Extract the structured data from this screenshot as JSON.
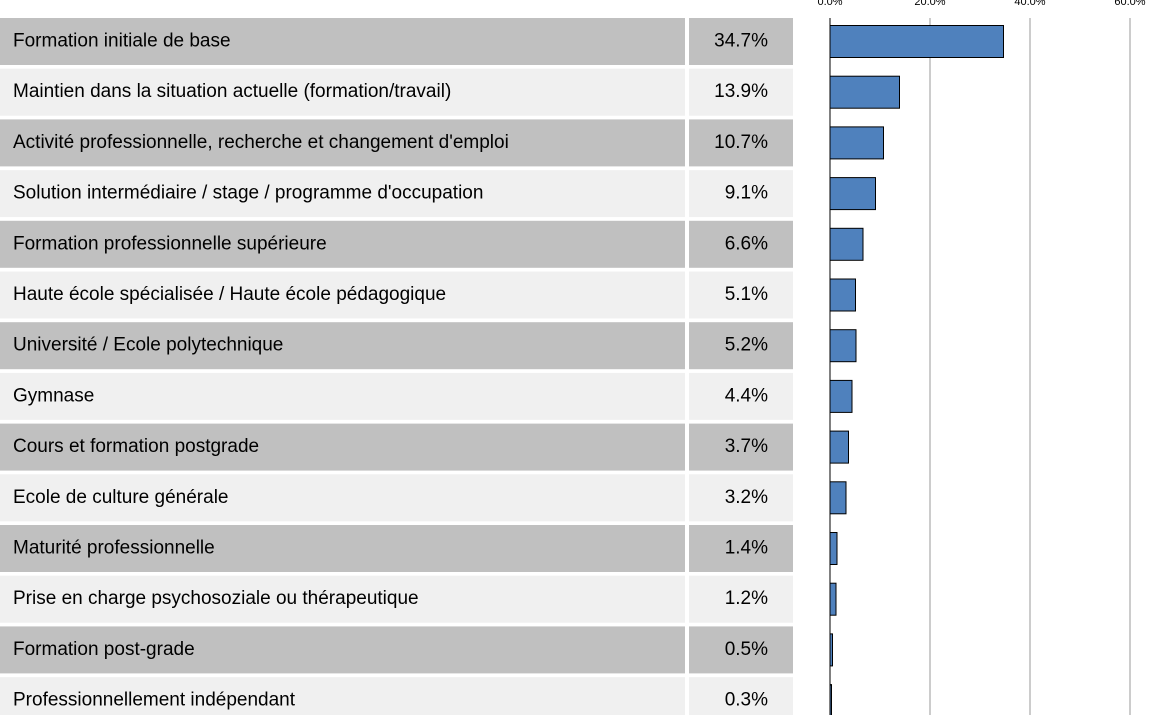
{
  "chart_data": {
    "type": "bar",
    "categories": [
      "Formation initiale de base",
      "Maintien dans la situation actuelle (formation/travail)",
      "Activité professionnelle, recherche et changement d'emploi",
      "Solution intermédiaire / stage / programme d'occupation",
      "Formation professionnelle supérieure",
      "Haute école spécialisée / Haute école pédagogique",
      "Université / Ecole polytechnique",
      "Gymnase",
      "Cours et formation postgrade",
      "Ecole de culture générale",
      "Maturité professionnelle",
      "Prise en charge psychosoziale ou thérapeutique",
      "Formation post-grade",
      "Professionnellement indépendant"
    ],
    "values": [
      34.7,
      13.9,
      10.7,
      9.1,
      6.6,
      5.1,
      5.2,
      4.4,
      3.7,
      3.2,
      1.4,
      1.2,
      0.5,
      0.3
    ],
    "value_labels": [
      "34.7%",
      "13.9%",
      "10.7%",
      "9.1%",
      "6.6%",
      "5.1%",
      "5.2%",
      "4.4%",
      "3.7%",
      "3.2%",
      "1.4%",
      "1.2%",
      "0.5%",
      "0.3%"
    ],
    "color": "#4f81bd",
    "xlim": [
      0,
      60
    ],
    "xticks": [
      {
        "value": 0,
        "label": "0.0%"
      },
      {
        "value": 20,
        "label": "20.0%"
      },
      {
        "value": 40,
        "label": "40.0%"
      },
      {
        "value": 60,
        "label": "60.0%"
      }
    ],
    "grid": true
  }
}
